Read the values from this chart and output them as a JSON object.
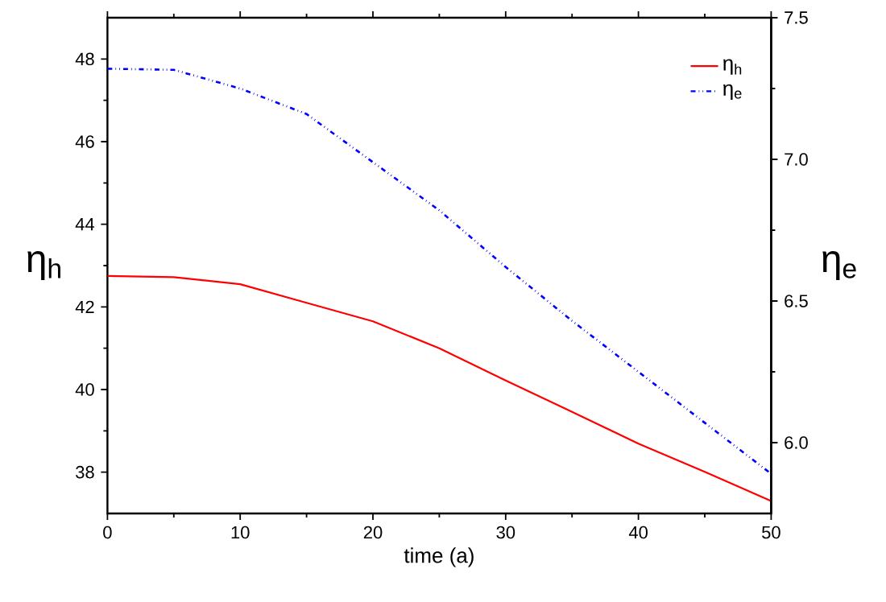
{
  "chart_data": {
    "type": "line",
    "xlabel": "time (a)",
    "ylabel": "η$_{h}$",
    "y2label": "η$_{e}$",
    "x": [
      0,
      5,
      10,
      15,
      20,
      25,
      30,
      35,
      40,
      45,
      50
    ],
    "xlim": [
      0,
      50
    ],
    "xticks": [
      0,
      10,
      20,
      30,
      40,
      50
    ],
    "ylim": [
      37,
      49
    ],
    "yticks": [
      38,
      40,
      42,
      44,
      46,
      48
    ],
    "y2lim": [
      5.75,
      7.5
    ],
    "y2ticks": [
      {
        "value": 6,
        "label": "6.0"
      },
      {
        "value": 6.5,
        "label": "6.5"
      },
      {
        "value": 7,
        "label": "7.0"
      },
      {
        "value": 7.5,
        "label": "7.5"
      }
    ],
    "series": [
      {
        "name": "η$_{h}$",
        "color": "#ff0000",
        "line_style": "solid",
        "values": [
          42.75,
          42.72,
          42.55,
          42.1,
          41.65,
          41.0,
          40.22,
          39.46,
          38.69,
          38.01,
          37.3
        ]
      },
      {
        "name": "η$_{e}$",
        "color": "#0000ff",
        "line_style": "dashdotdotted",
        "axis": "y2",
        "values": [
          7.32,
          7.316,
          7.25,
          7.16,
          6.99,
          6.82,
          6.62,
          6.43,
          6.25,
          6.07,
          5.89
        ]
      }
    ],
    "legend": "top right",
    "grid": false,
    "marker": "none"
  }
}
